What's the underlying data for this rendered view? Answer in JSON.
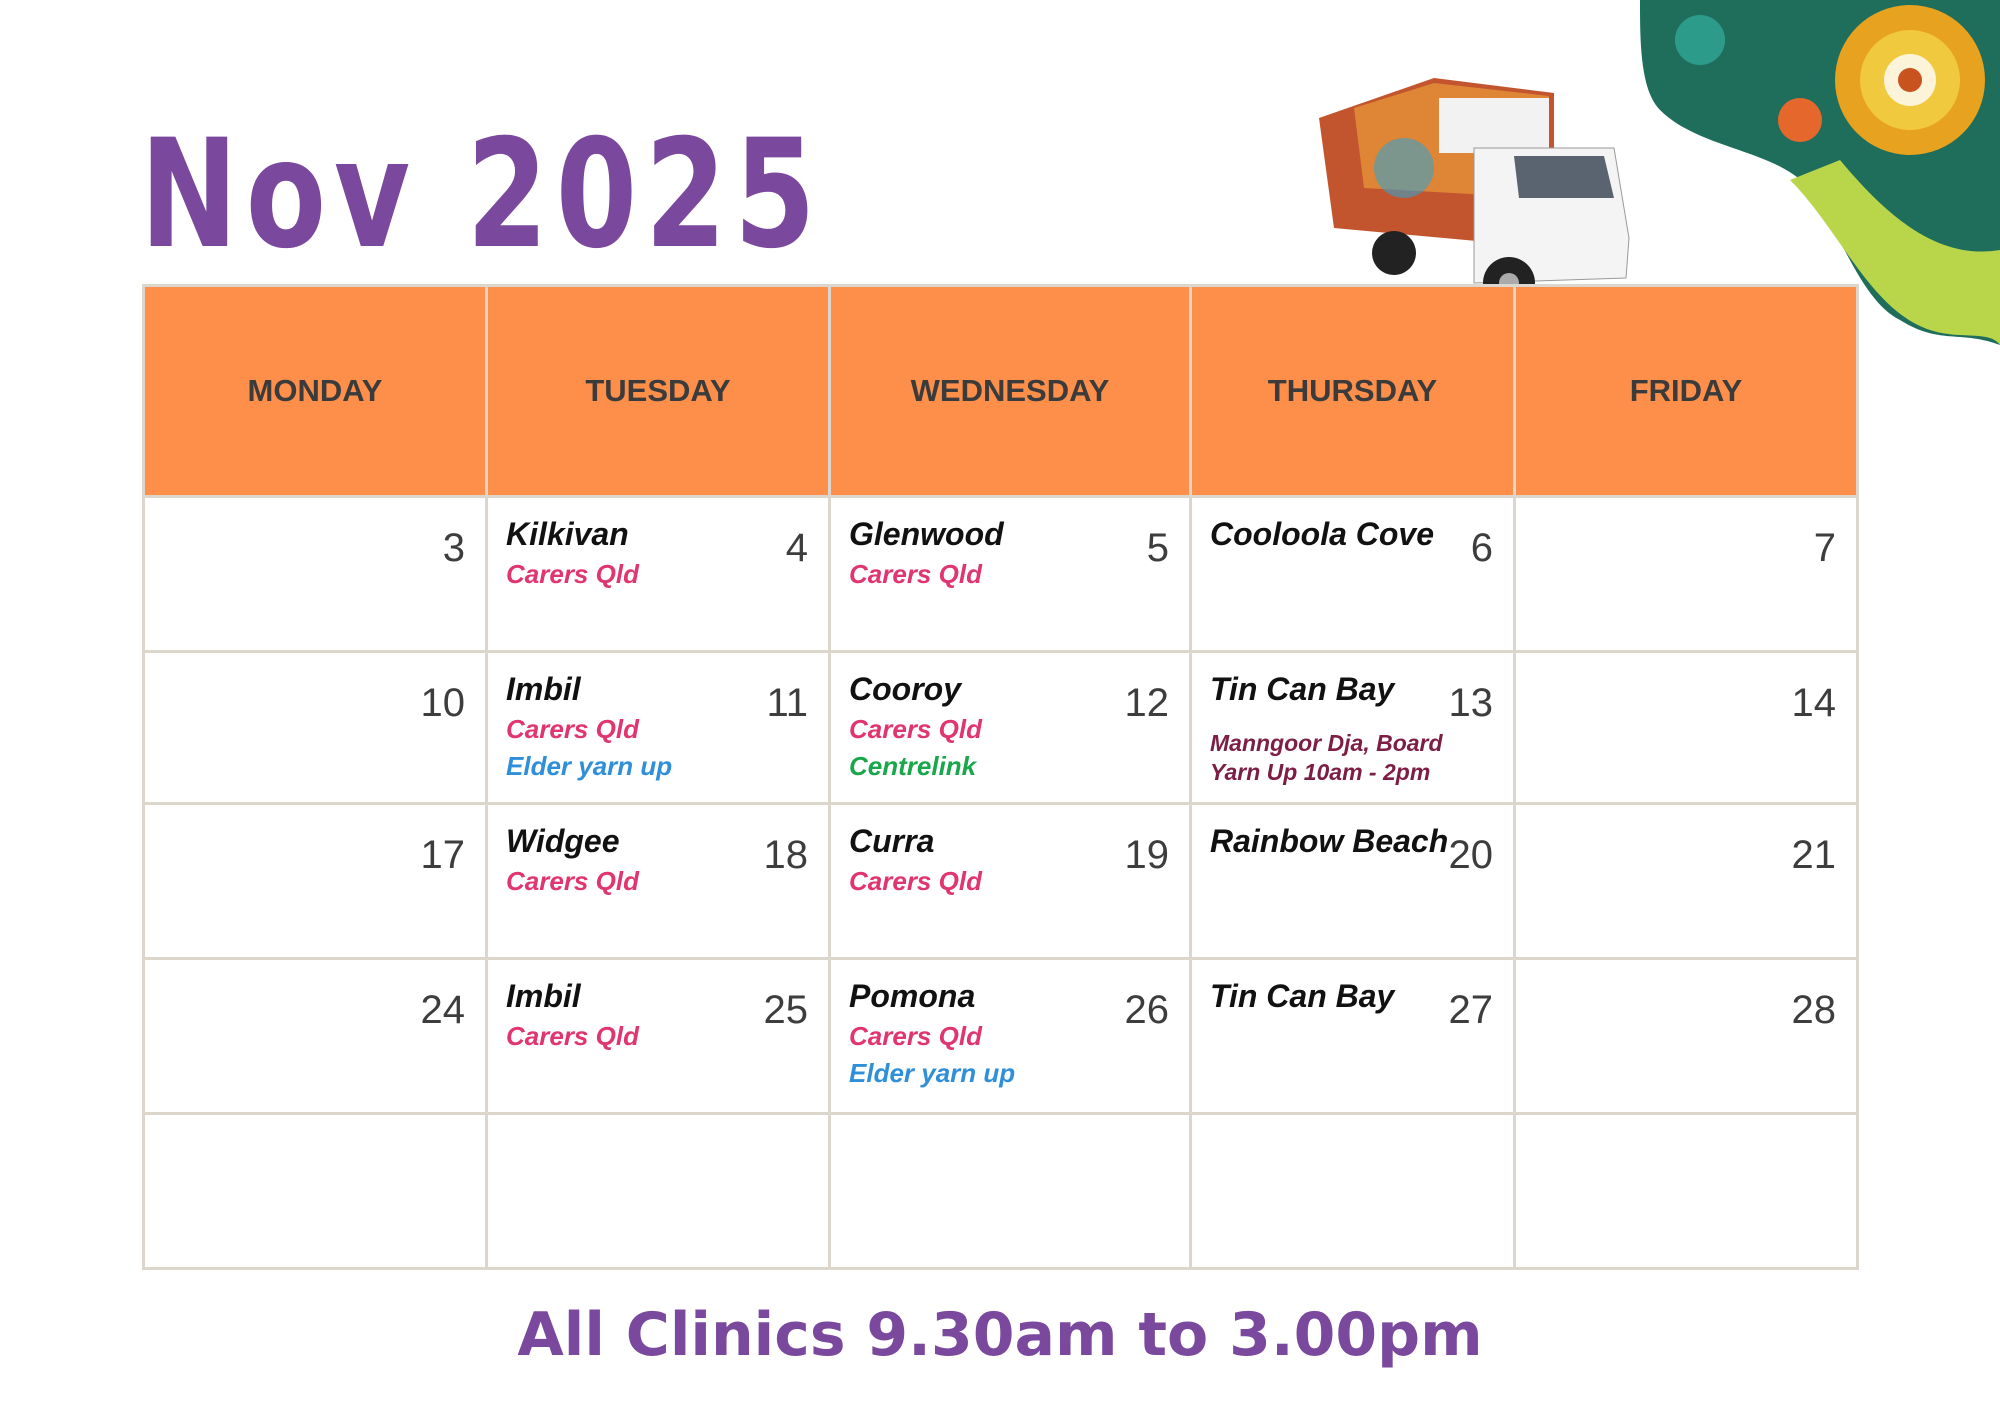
{
  "title": "Nov 2025",
  "colors": {
    "title": "#7a489c",
    "header": "#fd8f4a",
    "carers": "#e0356f",
    "elder": "#2f8fd8",
    "centrelink": "#1aa64a",
    "board": "#7d1e45"
  },
  "days": [
    "MONDAY",
    "TUESDAY",
    "WEDNESDAY",
    "THURSDAY",
    "FRIDAY"
  ],
  "weeks": [
    [
      {
        "n": "3"
      },
      {
        "n": "4",
        "place": "Kilkivan",
        "subs": [
          {
            "t": "Carers Qld",
            "c": "carers"
          }
        ]
      },
      {
        "n": "5",
        "place": "Glenwood",
        "subs": [
          {
            "t": "Carers Qld",
            "c": "carers"
          }
        ]
      },
      {
        "n": "6",
        "place": "Cooloola Cove",
        "subs": []
      },
      {
        "n": "7"
      }
    ],
    [
      {
        "n": "10"
      },
      {
        "n": "11",
        "place": "Imbil",
        "subs": [
          {
            "t": "Carers Qld",
            "c": "carers"
          },
          {
            "t": "Elder yarn up",
            "c": "elder"
          }
        ]
      },
      {
        "n": "12",
        "place": "Cooroy",
        "subs": [
          {
            "t": "Carers Qld",
            "c": "carers"
          },
          {
            "t": "Centrelink",
            "c": "centrelink"
          }
        ]
      },
      {
        "n": "13",
        "place": "Tin Can Bay",
        "subs": [
          {
            "t": "Manngoor Dja, Board",
            "c": "board"
          },
          {
            "t": "Yarn Up 10am - 2pm",
            "c": "board"
          }
        ]
      },
      {
        "n": "14"
      }
    ],
    [
      {
        "n": "17"
      },
      {
        "n": "18",
        "place": "Widgee",
        "subs": [
          {
            "t": "Carers Qld",
            "c": "carers"
          }
        ]
      },
      {
        "n": "19",
        "place": "Curra",
        "subs": [
          {
            "t": "Carers Qld",
            "c": "carers"
          }
        ]
      },
      {
        "n": "20",
        "place": "Rainbow Beach",
        "subs": []
      },
      {
        "n": "21"
      }
    ],
    [
      {
        "n": "24"
      },
      {
        "n": "25",
        "place": "Imbil",
        "subs": [
          {
            "t": "Carers Qld",
            "c": "carers"
          }
        ]
      },
      {
        "n": "26",
        "place": "Pomona",
        "subs": [
          {
            "t": "Carers Qld",
            "c": "carers"
          },
          {
            "t": "Elder yarn up",
            "c": "elder"
          }
        ]
      },
      {
        "n": "27",
        "place": "Tin Can Bay",
        "subs": []
      },
      {
        "n": "28"
      }
    ],
    [
      {},
      {},
      {},
      {},
      {}
    ]
  ],
  "footer": "All Clinics 9.30am to 3.00pm"
}
